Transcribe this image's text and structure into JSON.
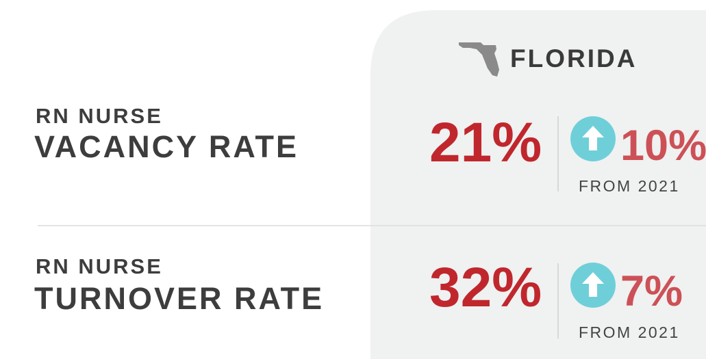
{
  "region": "FLORIDA",
  "rows": [
    {
      "label_top": "RN NURSE",
      "label_main": "VACANCY RATE",
      "value": "21%",
      "change": "10%",
      "note": "FROM 2021"
    },
    {
      "label_top": "RN NURSE",
      "label_main": "TURNOVER RATE",
      "value": "32%",
      "change": "7%",
      "note": "FROM 2021"
    }
  ]
}
